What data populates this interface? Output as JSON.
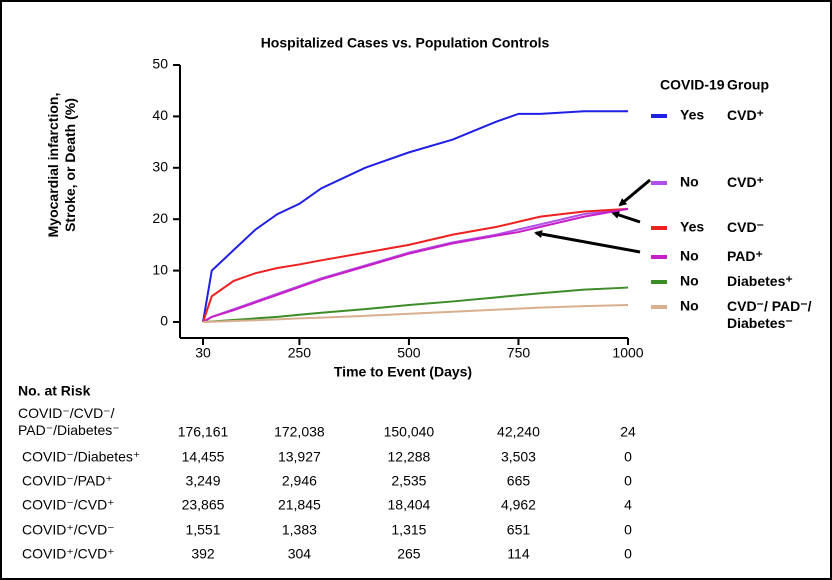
{
  "chart_data": {
    "type": "line",
    "title": "Hospitalized Cases vs. Population Controls",
    "xlabel": "Time to Event (Days)",
    "ylabel": "Myocardial infarction, Stroke, or Death (%)",
    "legend_headers": [
      "COVID-19",
      "Group"
    ],
    "x": [
      30,
      50,
      100,
      150,
      200,
      250,
      300,
      400,
      500,
      600,
      700,
      750,
      800,
      900,
      1000
    ],
    "xlim": [
      30,
      1000
    ],
    "xticks": [
      30,
      250,
      500,
      750,
      1000
    ],
    "ylim": [
      0,
      50
    ],
    "yticks": [
      0,
      10,
      20,
      30,
      40,
      50
    ],
    "legend": "right",
    "series": [
      {
        "name": "CVD⁺",
        "covid": "Yes",
        "color": "#1f1fe6",
        "values": [
          0,
          10,
          14,
          18,
          21,
          23,
          26,
          30,
          33,
          35.5,
          39,
          40.5,
          40.5,
          41,
          41
        ]
      },
      {
        "name": "CVD⁺",
        "covid": "No",
        "color": "#b050e8",
        "values": [
          0,
          1,
          2.5,
          4,
          5.5,
          7,
          8.5,
          11,
          13.5,
          15.5,
          17,
          18,
          19,
          21,
          22
        ]
      },
      {
        "name": "CVD⁻",
        "covid": "Yes",
        "color": "#ee2020",
        "values": [
          0,
          5,
          8,
          9.5,
          10.5,
          11.2,
          12,
          13.5,
          15,
          17,
          18.5,
          19.5,
          20.5,
          21.5,
          22
        ]
      },
      {
        "name": "PAD⁺",
        "covid": "No",
        "color": "#c81ec8",
        "values": [
          0,
          1,
          2.3,
          3.8,
          5.3,
          6.8,
          8.3,
          10.8,
          13.3,
          15.3,
          16.8,
          17.5,
          18.5,
          20.5,
          22
        ]
      },
      {
        "name": "Diabetes⁺",
        "covid": "No",
        "color": "#3c8c28",
        "values": [
          0,
          0.1,
          0.4,
          0.7,
          1,
          1.4,
          1.8,
          2.5,
          3.3,
          4,
          4.8,
          5.2,
          5.6,
          6.3,
          6.7
        ]
      },
      {
        "name": "CVD⁻/ PAD⁻/ Diabetes⁻",
        "covid": "No",
        "color": "#d8b090",
        "values": [
          0,
          0.05,
          0.2,
          0.35,
          0.5,
          0.7,
          0.85,
          1.2,
          1.6,
          2,
          2.4,
          2.6,
          2.8,
          3.1,
          3.3
        ]
      }
    ]
  },
  "risk_table": {
    "title": "No. at Risk",
    "rows": [
      {
        "label": "COVID⁻/CVD⁻/ PAD⁻/Diabetes⁻",
        "counts": [
          "176,161",
          "172,038",
          "150,040",
          "42,240",
          "24"
        ]
      },
      {
        "label": "COVID⁻/Diabetes⁺",
        "counts": [
          "14,455",
          "13,927",
          "12,288",
          "3,503",
          "0"
        ]
      },
      {
        "label": "COVID⁻/PAD⁺",
        "counts": [
          "3,249",
          "2,946",
          "2,535",
          "665",
          "0"
        ]
      },
      {
        "label": "COVID⁻/CVD⁺",
        "counts": [
          "23,865",
          "21,845",
          "18,404",
          "4,962",
          "4"
        ]
      },
      {
        "label": "COVID⁺/CVD⁻",
        "counts": [
          "1,551",
          "1,383",
          "1,315",
          "651",
          "0"
        ]
      },
      {
        "label": "COVID⁺/CVD⁺",
        "counts": [
          "392",
          "304",
          "265",
          "114",
          "0"
        ]
      }
    ]
  }
}
